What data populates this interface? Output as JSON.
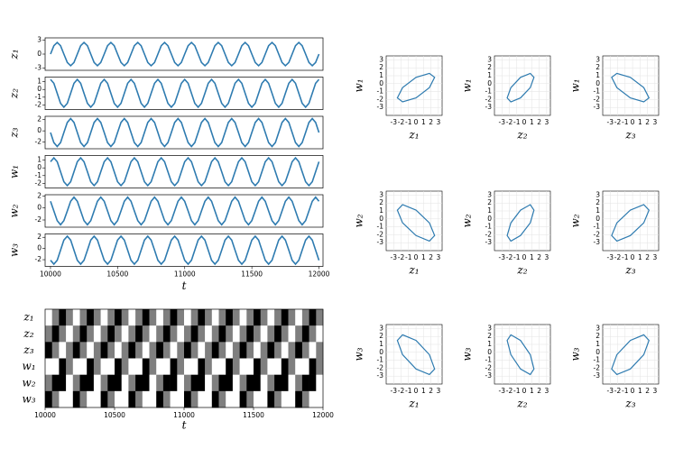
{
  "chart_data": [
    {
      "type": "stacked-lines",
      "xlabel": "t",
      "color": "#2e7bb0",
      "xlim": [
        9960,
        12030
      ],
      "xticks": [
        10000,
        10500,
        11000,
        11500,
        12000
      ],
      "x": [
        10000,
        10025,
        10050,
        10075,
        10100,
        10125,
        10150,
        10175,
        10200,
        10225,
        10250,
        10275,
        10300,
        10325,
        10350,
        10375,
        10400,
        10425,
        10450,
        10475,
        10500,
        10525,
        10550,
        10575,
        10600,
        10625,
        10650,
        10675,
        10700,
        10725,
        10750,
        10775,
        10800,
        10825,
        10850,
        10875,
        10900,
        10925,
        10950,
        10975,
        11000,
        11025,
        11050,
        11075,
        11100,
        11125,
        11150,
        11175,
        11200,
        11225,
        11250,
        11275,
        11300,
        11325,
        11350,
        11375,
        11400,
        11425,
        11450,
        11475,
        11500,
        11525,
        11550,
        11575,
        11600,
        11625,
        11650,
        11675,
        11700,
        11725,
        11750,
        11775,
        11800,
        11825,
        11850,
        11875,
        11900,
        11925,
        11950,
        11975,
        12000
      ],
      "series": [
        {
          "name": "z₁",
          "ylim": [
            -3.5,
            3.5
          ],
          "yticks": [
            -3,
            0,
            3
          ],
          "values": [
            0,
            1.8,
            2.5,
            1.8,
            0,
            -1.8,
            -2.5,
            -1.8,
            0,
            1.8,
            2.5,
            1.8,
            0,
            -1.8,
            -2.5,
            -1.8,
            0,
            1.8,
            2.5,
            1.8,
            0,
            -1.8,
            -2.5,
            -1.8,
            0,
            1.8,
            2.5,
            1.8,
            0,
            -1.8,
            -2.5,
            -1.8,
            0,
            1.8,
            2.5,
            1.8,
            0,
            -1.8,
            -2.5,
            -1.8,
            0,
            1.8,
            2.5,
            1.8,
            0,
            -1.8,
            -2.5,
            -1.8,
            0,
            1.8,
            2.5,
            1.8,
            0,
            -1.8,
            -2.5,
            -1.8,
            0,
            1.8,
            2.5,
            1.8,
            0,
            -1.8,
            -2.5,
            -1.8,
            0,
            1.8,
            2.5,
            1.8,
            0,
            -1.8,
            -2.5,
            -1.8,
            0,
            1.8,
            2.5,
            1.8,
            0,
            -1.8,
            -2.5,
            -1.8,
            0
          ]
        },
        {
          "name": "z₂",
          "ylim": [
            -2.6,
            1.6
          ],
          "yticks": [
            -2,
            -1,
            0,
            1
          ],
          "values": [
            1.3,
            0.8,
            -0.5,
            -1.8,
            -2.3,
            -1.8,
            -0.5,
            0.8,
            1.3,
            0.8,
            -0.5,
            -1.8,
            -2.3,
            -1.8,
            -0.5,
            0.8,
            1.3,
            0.8,
            -0.5,
            -1.8,
            -2.3,
            -1.8,
            -0.5,
            0.8,
            1.3,
            0.8,
            -0.5,
            -1.8,
            -2.3,
            -1.8,
            -0.5,
            0.8,
            1.3,
            0.8,
            -0.5,
            -1.8,
            -2.3,
            -1.8,
            -0.5,
            0.8,
            1.3,
            0.8,
            -0.5,
            -1.8,
            -2.3,
            -1.8,
            -0.5,
            0.8,
            1.3,
            0.8,
            -0.5,
            -1.8,
            -2.3,
            -1.8,
            -0.5,
            0.8,
            1.3,
            0.8,
            -0.5,
            -1.8,
            -2.3,
            -1.8,
            -0.5,
            0.8,
            1.3,
            0.8,
            -0.5,
            -1.8,
            -2.3,
            -1.8,
            -0.5,
            0.8,
            1.3,
            0.8,
            -0.5,
            -1.8,
            -2.3,
            -1.8,
            -0.5,
            0.8,
            1.3
          ]
        },
        {
          "name": "z₃",
          "ylim": [
            -3.2,
            2.6
          ],
          "yticks": [
            -2,
            0,
            2
          ],
          "values": [
            -0.3,
            -2.1,
            -2.8,
            -2.1,
            -0.3,
            1.5,
            2.2,
            1.5,
            -0.3,
            -2.1,
            -2.8,
            -2.1,
            -0.3,
            1.5,
            2.2,
            1.5,
            -0.3,
            -2.1,
            -2.8,
            -2.1,
            -0.3,
            1.5,
            2.2,
            1.5,
            -0.3,
            -2.1,
            -2.8,
            -2.1,
            -0.3,
            1.5,
            2.2,
            1.5,
            -0.3,
            -2.1,
            -2.8,
            -2.1,
            -0.3,
            1.5,
            2.2,
            1.5,
            -0.3,
            -2.1,
            -2.8,
            -2.1,
            -0.3,
            1.5,
            2.2,
            1.5,
            -0.3,
            -2.1,
            -2.8,
            -2.1,
            -0.3,
            1.5,
            2.2,
            1.5,
            -0.3,
            -2.1,
            -2.8,
            -2.1,
            -0.3,
            1.5,
            2.2,
            1.5,
            -0.3,
            -2.1,
            -2.8,
            -2.1,
            -0.3,
            1.5,
            2.2,
            1.5,
            -0.3,
            -2.1,
            -2.8,
            -2.1,
            -0.3,
            1.5,
            2.2,
            1.5,
            -0.3
          ]
        },
        {
          "name": "w₁",
          "ylim": [
            -2.6,
            1.6
          ],
          "yticks": [
            -2,
            -1,
            0,
            1
          ],
          "values": [
            0.8,
            1.3,
            0.8,
            -0.5,
            -1.8,
            -2.3,
            -1.8,
            -0.5,
            0.8,
            1.3,
            0.8,
            -0.5,
            -1.8,
            -2.3,
            -1.8,
            -0.5,
            0.8,
            1.3,
            0.8,
            -0.5,
            -1.8,
            -2.3,
            -1.8,
            -0.5,
            0.8,
            1.3,
            0.8,
            -0.5,
            -1.8,
            -2.3,
            -1.8,
            -0.5,
            0.8,
            1.3,
            0.8,
            -0.5,
            -1.8,
            -2.3,
            -1.8,
            -0.5,
            0.8,
            1.3,
            0.8,
            -0.5,
            -1.8,
            -2.3,
            -1.8,
            -0.5,
            0.8,
            1.3,
            0.8,
            -0.5,
            -1.8,
            -2.3,
            -1.8,
            -0.5,
            0.8,
            1.3,
            0.8,
            -0.5,
            -1.8,
            -2.3,
            -1.8,
            -0.5,
            0.8,
            1.3,
            0.8,
            -0.5,
            -1.8,
            -2.3,
            -1.8,
            -0.5,
            0.8,
            1.3,
            0.8,
            -0.5,
            -1.8,
            -2.3,
            -1.8,
            -0.5,
            0.8
          ]
        },
        {
          "name": "w₂",
          "ylim": [
            -3.2,
            2.2
          ],
          "yticks": [
            -2,
            0,
            2
          ],
          "values": [
            1.1,
            -0.5,
            -2.1,
            -2.8,
            -2.1,
            -0.5,
            1.1,
            1.8,
            1.1,
            -0.5,
            -2.1,
            -2.8,
            -2.1,
            -0.5,
            1.1,
            1.8,
            1.1,
            -0.5,
            -2.1,
            -2.8,
            -2.1,
            -0.5,
            1.1,
            1.8,
            1.1,
            -0.5,
            -2.1,
            -2.8,
            -2.1,
            -0.5,
            1.1,
            1.8,
            1.1,
            -0.5,
            -2.1,
            -2.8,
            -2.1,
            -0.5,
            1.1,
            1.8,
            1.1,
            -0.5,
            -2.1,
            -2.8,
            -2.1,
            -0.5,
            1.1,
            1.8,
            1.1,
            -0.5,
            -2.1,
            -2.8,
            -2.1,
            -0.5,
            1.1,
            1.8,
            1.1,
            -0.5,
            -2.1,
            -2.8,
            -2.1,
            -0.5,
            1.1,
            1.8,
            1.1,
            -0.5,
            -2.1,
            -2.8,
            -2.1,
            -0.5,
            1.1,
            1.8,
            1.1,
            -0.5,
            -2.1,
            -2.8,
            -2.1,
            -0.5,
            1.1,
            1.8,
            1.1
          ]
        },
        {
          "name": "w₃",
          "ylim": [
            -3.2,
            2.6
          ],
          "yticks": [
            -2,
            0,
            2
          ],
          "values": [
            -2.1,
            -2.8,
            -2.1,
            -0.3,
            1.5,
            2.2,
            1.5,
            -0.3,
            -2.1,
            -2.8,
            -2.1,
            -0.3,
            1.5,
            2.2,
            1.5,
            -0.3,
            -2.1,
            -2.8,
            -2.1,
            -0.3,
            1.5,
            2.2,
            1.5,
            -0.3,
            -2.1,
            -2.8,
            -2.1,
            -0.3,
            1.5,
            2.2,
            1.5,
            -0.3,
            -2.1,
            -2.8,
            -2.1,
            -0.3,
            1.5,
            2.2,
            1.5,
            -0.3,
            -2.1,
            -2.8,
            -2.1,
            -0.3,
            1.5,
            2.2,
            1.5,
            -0.3,
            -2.1,
            -2.8,
            -2.1,
            -0.3,
            1.5,
            2.2,
            1.5,
            -0.3,
            -2.1,
            -2.8,
            -2.1,
            -0.3,
            1.5,
            2.2,
            1.5,
            -0.3,
            -2.1,
            -2.8,
            -2.1,
            -0.3,
            1.5,
            2.2,
            1.5,
            -0.3,
            -2.1,
            -2.8,
            -2.1,
            -0.3,
            1.5,
            2.2,
            1.5,
            -0.3,
            -2.1
          ]
        }
      ]
    },
    {
      "type": "raster",
      "xlabel": "t",
      "xlim": [
        10000,
        12000
      ],
      "xticks": [
        10000,
        10500,
        11000,
        11500,
        12000
      ],
      "colors": [
        "#000000",
        "#7f7f7f",
        "#ffffff"
      ],
      "rows": [
        {
          "name": "z₁",
          "values": [
            1,
            0,
            -1,
            0,
            1,
            0,
            -1,
            0,
            1,
            0,
            -1,
            0,
            1,
            0,
            -1,
            0,
            1,
            0,
            -1,
            0,
            1,
            0,
            -1,
            0,
            1,
            0,
            -1,
            0,
            1,
            0,
            -1,
            0,
            1,
            0,
            -1,
            0,
            1,
            0,
            -1,
            0
          ]
        },
        {
          "name": "z₂",
          "values": [
            0,
            -1,
            0,
            1,
            0,
            -1,
            0,
            1,
            0,
            -1,
            0,
            1,
            0,
            -1,
            0,
            1,
            0,
            -1,
            0,
            1,
            0,
            -1,
            0,
            1,
            0,
            -1,
            0,
            1,
            0,
            -1,
            0,
            1,
            0,
            -1,
            0,
            1,
            0,
            -1,
            0,
            1
          ]
        },
        {
          "name": "z₃",
          "values": [
            -1,
            0,
            1,
            0,
            -1,
            0,
            1,
            0,
            -1,
            0,
            1,
            0,
            -1,
            0,
            1,
            0,
            -1,
            0,
            1,
            0,
            -1,
            0,
            1,
            0,
            -1,
            0,
            1,
            0,
            -1,
            0,
            1,
            0,
            -1,
            0,
            1,
            0,
            -1,
            0,
            1,
            0
          ]
        },
        {
          "name": "w₁",
          "values": [
            1,
            1,
            -1,
            0,
            1,
            1,
            -1,
            0,
            1,
            1,
            -1,
            0,
            1,
            1,
            -1,
            0,
            1,
            1,
            -1,
            0,
            1,
            1,
            -1,
            0,
            1,
            1,
            -1,
            0,
            1,
            1,
            -1,
            0,
            1,
            1,
            -1,
            0,
            1,
            1,
            -1,
            0
          ]
        },
        {
          "name": "w₂",
          "values": [
            0,
            -1,
            -1,
            1,
            0,
            -1,
            -1,
            1,
            0,
            -1,
            -1,
            1,
            0,
            -1,
            -1,
            1,
            0,
            -1,
            -1,
            1,
            0,
            -1,
            -1,
            1,
            0,
            -1,
            -1,
            1,
            0,
            -1,
            -1,
            1,
            0,
            -1,
            -1,
            1,
            0,
            -1,
            -1,
            1
          ]
        },
        {
          "name": "w₃",
          "values": [
            -1,
            0,
            1,
            1,
            -1,
            0,
            1,
            1,
            -1,
            0,
            1,
            1,
            -1,
            0,
            1,
            1,
            -1,
            0,
            1,
            1,
            -1,
            0,
            1,
            1,
            -1,
            0,
            1,
            1,
            -1,
            0,
            1,
            1,
            -1,
            0,
            1,
            1,
            -1,
            0,
            1,
            1
          ]
        }
      ]
    },
    {
      "type": "phase",
      "xlabel": "z₁",
      "ylabel": "w₁",
      "xlim": [
        -4,
        3.5
      ],
      "ylim": [
        -4,
        3.5
      ],
      "xticks": [
        -3,
        -2,
        -1,
        0,
        1,
        2,
        3
      ],
      "yticks": [
        -3,
        -2,
        -1,
        0,
        1,
        2,
        3
      ],
      "grid": true,
      "color": "#2e7bb0"
    },
    {
      "type": "phase",
      "xlabel": "z₂",
      "ylabel": "w₁",
      "xlim": [
        -4,
        3.5
      ],
      "ylim": [
        -4,
        3.5
      ],
      "xticks": [
        -3,
        -2,
        -1,
        0,
        1,
        2,
        3
      ],
      "yticks": [
        -3,
        -2,
        -1,
        0,
        1,
        2,
        3
      ],
      "grid": true,
      "color": "#2e7bb0"
    },
    {
      "type": "phase",
      "xlabel": "z₃",
      "ylabel": "w₁",
      "xlim": [
        -4,
        3.5
      ],
      "ylim": [
        -4,
        3.5
      ],
      "xticks": [
        -3,
        -2,
        -1,
        0,
        1,
        2,
        3
      ],
      "yticks": [
        -3,
        -2,
        -1,
        0,
        1,
        2,
        3
      ],
      "grid": true,
      "color": "#2e7bb0"
    },
    {
      "type": "phase",
      "xlabel": "z₁",
      "ylabel": "w₂",
      "xlim": [
        -4,
        3.5
      ],
      "ylim": [
        -4,
        3.5
      ],
      "xticks": [
        -3,
        -2,
        -1,
        0,
        1,
        2,
        3
      ],
      "yticks": [
        -3,
        -2,
        -1,
        0,
        1,
        2,
        3
      ],
      "grid": true,
      "color": "#2e7bb0"
    },
    {
      "type": "phase",
      "xlabel": "z₂",
      "ylabel": "w₂",
      "xlim": [
        -4,
        3.5
      ],
      "ylim": [
        -4,
        3.5
      ],
      "xticks": [
        -3,
        -2,
        -1,
        0,
        1,
        2,
        3
      ],
      "yticks": [
        -3,
        -2,
        -1,
        0,
        1,
        2,
        3
      ],
      "grid": true,
      "color": "#2e7bb0"
    },
    {
      "type": "phase",
      "xlabel": "z₃",
      "ylabel": "w₂",
      "xlim": [
        -4,
        3.5
      ],
      "ylim": [
        -4,
        3.5
      ],
      "xticks": [
        -3,
        -2,
        -1,
        0,
        1,
        2,
        3
      ],
      "yticks": [
        -3,
        -2,
        -1,
        0,
        1,
        2,
        3
      ],
      "grid": true,
      "color": "#2e7bb0"
    },
    {
      "type": "phase",
      "xlabel": "z₁",
      "ylabel": "w₃",
      "xlim": [
        -4,
        3.5
      ],
      "ylim": [
        -4,
        3.5
      ],
      "xticks": [
        -3,
        -2,
        -1,
        0,
        1,
        2,
        3
      ],
      "yticks": [
        -3,
        -2,
        -1,
        0,
        1,
        2,
        3
      ],
      "grid": true,
      "color": "#2e7bb0"
    },
    {
      "type": "phase",
      "xlabel": "z₂",
      "ylabel": "w₃",
      "xlim": [
        -4,
        3.5
      ],
      "ylim": [
        -4,
        3.5
      ],
      "xticks": [
        -3,
        -2,
        -1,
        0,
        1,
        2,
        3
      ],
      "yticks": [
        -3,
        -2,
        -1,
        0,
        1,
        2,
        3
      ],
      "grid": true,
      "color": "#2e7bb0"
    },
    {
      "type": "phase",
      "xlabel": "z₃",
      "ylabel": "w₃",
      "xlim": [
        -4,
        3.5
      ],
      "ylim": [
        -4,
        3.5
      ],
      "xticks": [
        -3,
        -2,
        -1,
        0,
        1,
        2,
        3
      ],
      "yticks": [
        -3,
        -2,
        -1,
        0,
        1,
        2,
        3
      ],
      "grid": true,
      "color": "#2e7bb0"
    }
  ]
}
